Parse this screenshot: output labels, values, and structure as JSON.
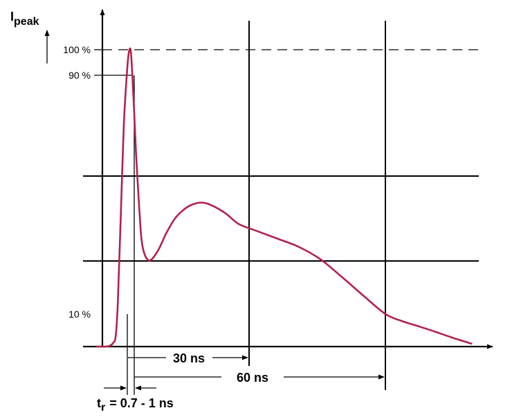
{
  "chart_data": {
    "type": "line",
    "title": "",
    "ylabel": {
      "main": "I",
      "subscript": "peak"
    },
    "xlabel": "",
    "y_ticks": [
      {
        "label": "100 %",
        "value": 100
      },
      {
        "label": "90 %",
        "value": 90
      },
      {
        "label": "10 %",
        "value": 10
      }
    ],
    "x_annotations": [
      {
        "label": "30 ns",
        "value": 30
      },
      {
        "label": "60 ns",
        "value": 60
      }
    ],
    "rise_time": {
      "main": "t",
      "subscript": "r",
      "value": "= 0.7 - 1 ns"
    },
    "grid_levels_percent": [
      53,
      33
    ],
    "series_color": "#b3204a",
    "series": [
      {
        "x": [
          -7,
          -5,
          -4,
          -3.3,
          -2.7,
          -2.2,
          -1.5,
          -0.8,
          0,
          0.5,
          0.9,
          1.5,
          2,
          2.8,
          3.5,
          5,
          7,
          9,
          11,
          13,
          15,
          17.5,
          20,
          23,
          26,
          30,
          35,
          40,
          45,
          50,
          55,
          60,
          64,
          68,
          72,
          76,
          80
        ],
        "y": [
          0,
          0,
          0.3,
          1.2,
          3.5,
          15,
          45,
          75,
          94,
          100,
          98,
          82,
          66,
          46,
          34,
          29,
          32,
          38,
          43,
          46,
          47.8,
          48.5,
          47.3,
          44.7,
          41.2,
          39,
          36.3,
          33.5,
          29.3,
          23.3,
          17,
          11,
          8.5,
          6.7,
          4.8,
          2.8,
          1
        ]
      }
    ]
  }
}
